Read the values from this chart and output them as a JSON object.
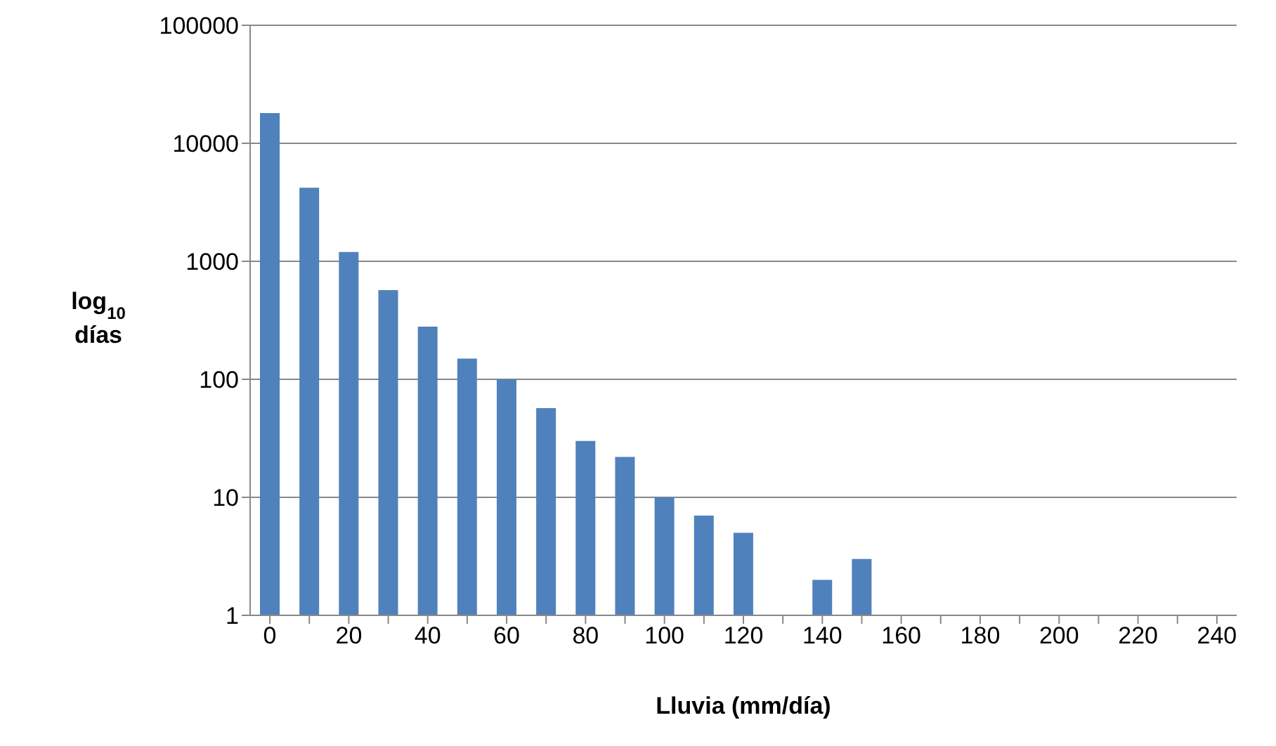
{
  "chart_data": {
    "type": "bar",
    "xlabel": "Lluvia (mm/día)",
    "ylabel": "log$_{10}$ días",
    "categories": [
      "0",
      null,
      "20",
      null,
      "40",
      null,
      "60",
      null,
      "80",
      null,
      "100",
      null,
      "120",
      null,
      "140",
      null,
      "160",
      null,
      "180",
      null,
      "200",
      null,
      "220",
      null,
      "240"
    ],
    "values": [
      18000,
      4200,
      1200,
      570,
      280,
      150,
      100,
      57,
      30,
      22,
      10,
      7,
      5,
      null,
      2,
      3,
      null,
      null,
      null,
      null,
      null,
      null,
      null,
      null,
      null
    ],
    "color": "#4f81bd",
    "log": true,
    "ylim": [
      1,
      100000
    ],
    "yticks": [
      1,
      10,
      100,
      1000,
      10000,
      100000
    ],
    "grid": "y"
  }
}
